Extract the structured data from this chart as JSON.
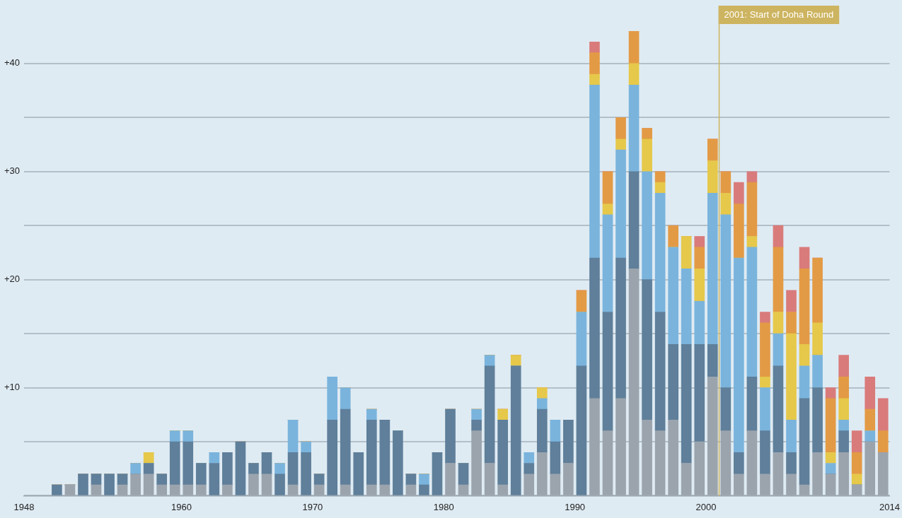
{
  "chart_data": {
    "type": "bar",
    "stacked": true,
    "legend": false,
    "grid": "y",
    "x": [
      1950.5,
      1951.5,
      1952.5,
      1953.5,
      1954.5,
      1955.5,
      1956.5,
      1957.5,
      1958.5,
      1959.5,
      1960.5,
      1961.5,
      1962.5,
      1963.5,
      1964.5,
      1965.5,
      1966.5,
      1967.5,
      1968.5,
      1969.5,
      1970.5,
      1971.5,
      1972.5,
      1973.5,
      1974.5,
      1975.5,
      1976.5,
      1977.5,
      1978.5,
      1979.5,
      1980.5,
      1981.5,
      1982.5,
      1983.5,
      1984.5,
      1985.5,
      1986.5,
      1987.5,
      1988.5,
      1989.5,
      1990.5,
      1991.5,
      1992.5,
      1993.5,
      1994.5,
      1995.5,
      1996.5,
      1997.5,
      1998.5,
      1999.5,
      2000.5,
      2001.5,
      2002.5,
      2003.5,
      2004.5,
      2005.5,
      2006.5,
      2007.5,
      2008.5,
      2009.5,
      2010.5,
      2011.5,
      2012.5,
      2013.5
    ],
    "series": [
      {
        "color": "#9ba4ad",
        "values": [
          0,
          1,
          0,
          1,
          0,
          1,
          2,
          2,
          1,
          1,
          1,
          1,
          0,
          1,
          0,
          2,
          2,
          0,
          1,
          0,
          1,
          0,
          1,
          0,
          1,
          1,
          0,
          1,
          0,
          0,
          3,
          1,
          6,
          3,
          1,
          0,
          2,
          4,
          2,
          3,
          0,
          9,
          6,
          9,
          21,
          7,
          6,
          7,
          3,
          5,
          11,
          6,
          2,
          6,
          2,
          4,
          2,
          1,
          4,
          2,
          4,
          1,
          5,
          4
        ]
      },
      {
        "color": "#5f7f9a",
        "values": [
          1,
          0,
          2,
          1,
          2,
          1,
          0,
          1,
          1,
          4,
          4,
          2,
          3,
          3,
          5,
          1,
          2,
          2,
          3,
          4,
          1,
          7,
          7,
          4,
          6,
          6,
          6,
          1,
          1,
          4,
          5,
          2,
          1,
          9,
          6,
          12,
          1,
          4,
          3,
          4,
          12,
          13,
          11,
          13,
          9,
          13,
          11,
          7,
          11,
          9,
          3,
          4,
          2,
          5,
          4,
          8,
          2,
          8,
          6,
          0,
          2,
          0,
          0,
          0
        ]
      },
      {
        "color": "#7ab4dd",
        "values": [
          0,
          0,
          0,
          0,
          0,
          0,
          1,
          0,
          0,
          1,
          1,
          0,
          1,
          0,
          0,
          0,
          0,
          1,
          3,
          1,
          0,
          4,
          2,
          0,
          1,
          0,
          0,
          0,
          1,
          0,
          0,
          0,
          1,
          1,
          0,
          0,
          1,
          1,
          2,
          0,
          5,
          16,
          9,
          10,
          8,
          10,
          11,
          9,
          7,
          4,
          14,
          16,
          18,
          12,
          4,
          3,
          3,
          3,
          3,
          1,
          1,
          0,
          1,
          0
        ]
      },
      {
        "color": "#e6c84a",
        "values": [
          0,
          0,
          0,
          0,
          0,
          0,
          0,
          1,
          0,
          0,
          0,
          0,
          0,
          0,
          0,
          0,
          0,
          0,
          0,
          0,
          0,
          0,
          0,
          0,
          0,
          0,
          0,
          0,
          0,
          0,
          0,
          0,
          0,
          0,
          1,
          1,
          0,
          1,
          0,
          0,
          0,
          1,
          1,
          1,
          2,
          3,
          1,
          0,
          3,
          3,
          3,
          2,
          0,
          1,
          1,
          2,
          8,
          2,
          3,
          1,
          2,
          1,
          0,
          0
        ]
      },
      {
        "color": "#e39a45",
        "values": [
          0,
          0,
          0,
          0,
          0,
          0,
          0,
          0,
          0,
          0,
          0,
          0,
          0,
          0,
          0,
          0,
          0,
          0,
          0,
          0,
          0,
          0,
          0,
          0,
          0,
          0,
          0,
          0,
          0,
          0,
          0,
          0,
          0,
          0,
          0,
          0,
          0,
          0,
          0,
          0,
          2,
          2,
          3,
          2,
          3,
          1,
          1,
          2,
          0,
          2,
          2,
          2,
          5,
          5,
          5,
          6,
          2,
          7,
          6,
          5,
          2,
          2,
          2,
          2
        ]
      },
      {
        "color": "#d97b7b",
        "values": [
          0,
          0,
          0,
          0,
          0,
          0,
          0,
          0,
          0,
          0,
          0,
          0,
          0,
          0,
          0,
          0,
          0,
          0,
          0,
          0,
          0,
          0,
          0,
          0,
          0,
          0,
          0,
          0,
          0,
          0,
          0,
          0,
          0,
          0,
          0,
          0,
          0,
          0,
          0,
          0,
          0,
          1,
          0,
          0,
          0,
          0,
          0,
          0,
          0,
          1,
          0,
          0,
          2,
          1,
          1,
          2,
          2,
          2,
          0,
          1,
          2,
          2,
          3,
          3
        ]
      }
    ],
    "xlim": [
      1948,
      2014
    ],
    "xticks": [
      1948,
      1960,
      1970,
      1980,
      1990,
      2000,
      2014
    ],
    "ylim": [
      0,
      43
    ],
    "yticks": [
      {
        "value": 0,
        "label": null
      },
      {
        "value": 5,
        "label": null
      },
      {
        "value": 10,
        "label": "+10"
      },
      {
        "value": 15,
        "label": null
      },
      {
        "value": 20,
        "label": "+20"
      },
      {
        "value": 25,
        "label": null
      },
      {
        "value": 30,
        "label": "+30"
      },
      {
        "value": 35,
        "label": null
      },
      {
        "value": 40,
        "label": "+40"
      }
    ],
    "ref_lines": [
      {
        "axis": "x",
        "value": 2001,
        "label": "2001: Start of Doha Round",
        "color": "#cdb460"
      }
    ]
  }
}
